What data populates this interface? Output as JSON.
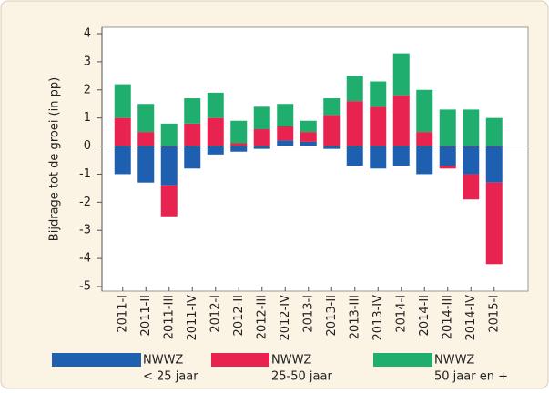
{
  "chart_data": {
    "type": "stacked-bar",
    "y_label": "Bijdrage tot de groei (in pp)",
    "categories": [
      "2011-I",
      "2011-II",
      "2011-III",
      "2011-IV",
      "2012-I",
      "2012-II",
      "2012-III",
      "2012-IV",
      "2013-I",
      "2013-II",
      "2013-III",
      "2013-IV",
      "2014-I",
      "2014-II",
      "2014-III",
      "2014-IV",
      "2015-I"
    ],
    "series": [
      {
        "name": "NWWZ",
        "label": "< 25 jaar",
        "color": "#1f5fb0",
        "values": [
          -1.0,
          -1.3,
          -1.4,
          -0.8,
          -0.3,
          -0.2,
          -0.1,
          0.2,
          0.15,
          -0.1,
          -0.7,
          -0.8,
          -0.7,
          -1.0,
          -0.7,
          -1.0,
          -1.3
        ]
      },
      {
        "name": "NWWZ",
        "label": "25-50 jaar",
        "color": "#e8234f",
        "values": [
          1.0,
          0.5,
          -1.1,
          0.8,
          1.0,
          0.1,
          0.6,
          0.5,
          0.35,
          1.1,
          1.6,
          1.4,
          1.8,
          0.5,
          -0.1,
          -0.9,
          -2.9
        ]
      },
      {
        "name": "NWWZ",
        "label": "50 jaar en +",
        "color": "#1fae6e",
        "values": [
          1.2,
          1.0,
          0.8,
          0.9,
          0.9,
          0.8,
          0.8,
          0.8,
          0.4,
          0.6,
          0.9,
          0.9,
          1.5,
          1.5,
          1.3,
          1.3,
          1.0
        ]
      }
    ],
    "ylim": [
      -5,
      4
    ],
    "yticks": [
      -5,
      -4,
      -3,
      -2,
      -1,
      0,
      1,
      2,
      3,
      4
    ]
  }
}
